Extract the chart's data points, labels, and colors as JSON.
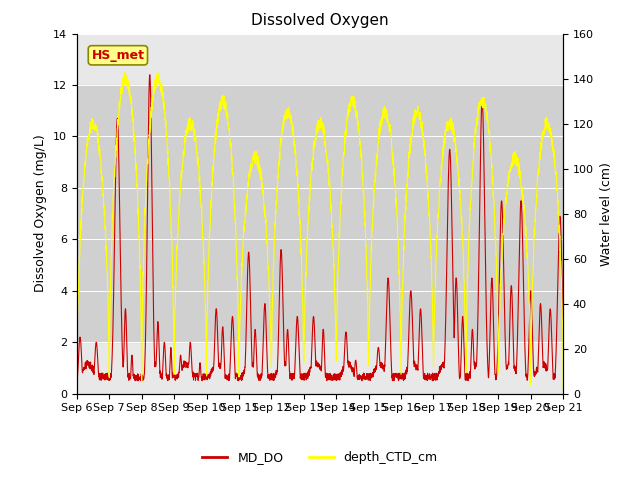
{
  "title": "Dissolved Oxygen",
  "ylabel_left": "Dissolved Oxygen (mg/L)",
  "ylabel_right": "Water level (cm)",
  "annotation_text": "HS_met",
  "ylim_left": [
    0,
    14
  ],
  "ylim_right": [
    0,
    160
  ],
  "yticks_left": [
    0,
    2,
    4,
    6,
    8,
    10,
    12,
    14
  ],
  "yticks_right": [
    0,
    20,
    40,
    60,
    80,
    100,
    120,
    140,
    160
  ],
  "xtick_labels": [
    "Sep 6",
    "Sep 7",
    "Sep 8",
    "Sep 9",
    "Sep 10",
    "Sep 11",
    "Sep 12",
    "Sep 13",
    "Sep 14",
    "Sep 15",
    "Sep 16",
    "Sep 17",
    "Sep 18",
    "Sep 19",
    "Sep 20",
    "Sep 21"
  ],
  "color_MD_DO": "#cc0000",
  "color_depth": "#ffff00",
  "legend_label_1": "MD_DO",
  "legend_label_2": "depth_CTD_cm",
  "bg_color": "#e8e8e8",
  "band_low": 2.0,
  "band_high": 12.0,
  "band_color_inner": "#d0d0d0",
  "title_fontsize": 11,
  "axis_label_fontsize": 9,
  "tick_fontsize": 8
}
